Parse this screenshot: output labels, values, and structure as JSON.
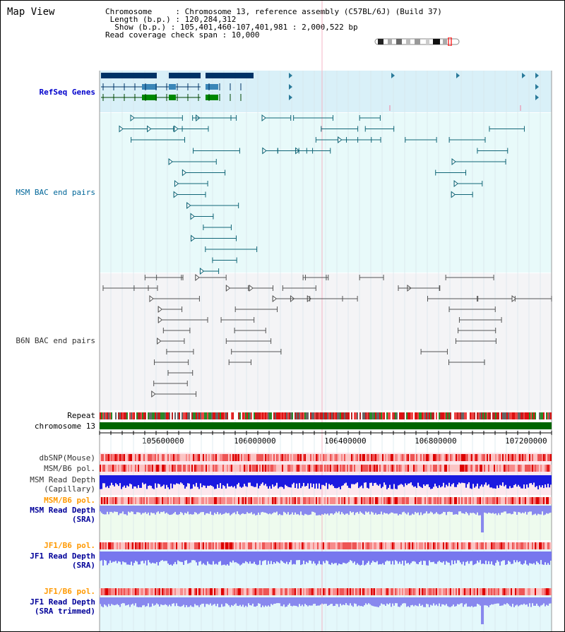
{
  "page_title": "Map View",
  "summary": {
    "chromosome_line": "Chromosome     : Chromosome 13, reference assembly (C57BL/6J) (Build 37)",
    "length_line": " Length (b.p.) : 120,284,312",
    "show_line": "  Show (b.p.) : 105,401,460-107,401,981 : 2,000,522 bp",
    "coverage_line": "Read coverage check span : 10,000"
  },
  "tracks": {
    "refseq": "RefSeq Genes",
    "msm_bac": "MSM BAC end pairs",
    "b6n_bac": "B6N BAC end pairs",
    "repeat": "Repeat",
    "chromosome": "chromosome 13",
    "dbsnp": "dbSNP(Mouse)",
    "msm_b6_pol": "MSM/B6 pol.",
    "msm_depth_cap_1": "MSM Read Depth",
    "msm_depth_cap_2": "(Capillary)",
    "msm_b6_pol_2": "MSM/B6 pol.",
    "msm_depth_sra_1": "MSM Read Depth",
    "msm_depth_sra_2": "(SRA)",
    "jf1_b6_pol": "JF1/B6 pol.",
    "jf1_depth_sra_1": "JF1 Read Depth",
    "jf1_depth_sra_2": "(SRA)",
    "jf1_b6_pol_2": "JF1/B6 pol.",
    "jf1_depth_trim_1": "JF1 Read Depth",
    "jf1_depth_trim_2": "(SRA trimmed)"
  },
  "axis_ticks": [
    "105600000",
    "106000000",
    "106400000",
    "106800000",
    "107200000"
  ],
  "colors": {
    "refseq_label": "#0000cc",
    "msm_label": "#006699",
    "b6n_label": "#333333",
    "orange_label": "#ff9900",
    "depth_label": "#000099",
    "refseq_bg": "#d9f0f8",
    "msm_bg": "#e8fafa",
    "b6n_bg": "#f4f4f6",
    "chrom_green": "#006600"
  }
}
